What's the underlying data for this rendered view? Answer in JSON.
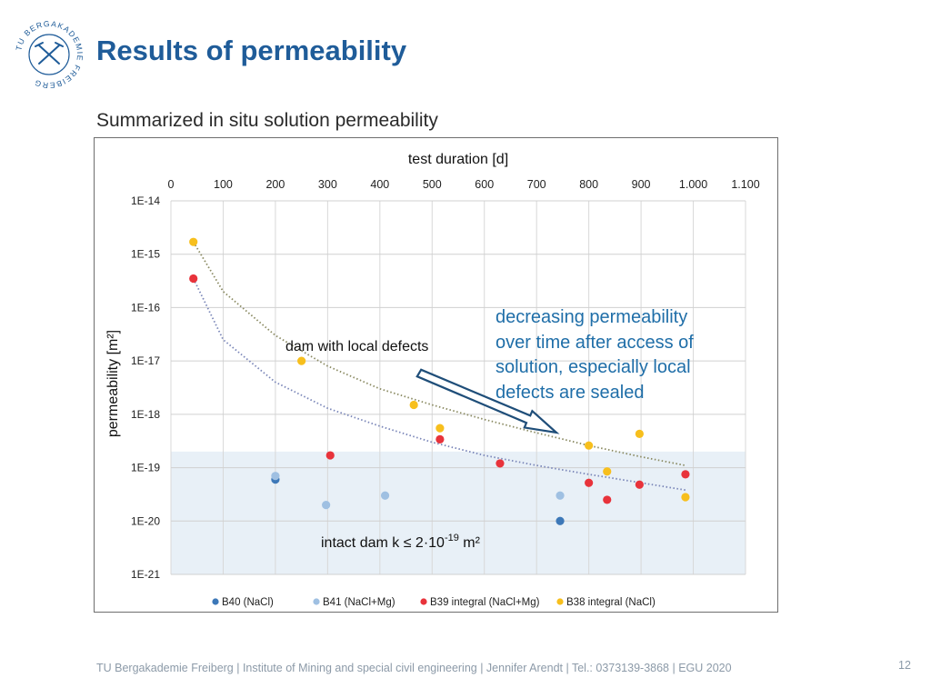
{
  "slide": {
    "title": "Results of permeability",
    "subtitle": "Summarized in situ solution permeability",
    "annotation": "decreasing permeability over time after access of solution, especially local defects are sealed",
    "footer": "TU Bergakademie Freiberg | Institute of Mining and special civil engineering  | Jennifer Arendt | Tel.: 0373139-3868 | EGU 2020",
    "page_number": "12",
    "logo_text": "TU BERGAKADEMIE FREIBERG"
  },
  "chart_data": {
    "type": "scatter",
    "title": "",
    "xlabel": "test duration [d]",
    "ylabel": "permeability [m²]",
    "x_axis_position": "top",
    "xlim": [
      0,
      1100
    ],
    "x_ticks": [
      0,
      100,
      200,
      300,
      400,
      500,
      600,
      700,
      800,
      900,
      1000,
      1100
    ],
    "x_tick_labels": [
      "0",
      "100",
      "200",
      "300",
      "400",
      "500",
      "600",
      "700",
      "800",
      "900",
      "1.000",
      "1.100"
    ],
    "y_scale": "log",
    "ylim": [
      1e-21,
      1e-14
    ],
    "y_ticks": [
      1e-14,
      1e-15,
      1e-16,
      1e-17,
      1e-18,
      1e-19,
      1e-20,
      1e-21
    ],
    "y_tick_labels": [
      "1E-14",
      "1E-15",
      "1E-16",
      "1E-17",
      "1E-18",
      "1E-19",
      "1E-20",
      "1E-21"
    ],
    "grid": true,
    "legend_position": "bottom",
    "region": {
      "y_max": 2e-19,
      "color": "#e8f0f7",
      "label_text": "intact dam k ≤ 2·10",
      "label_sup": "-19",
      "label_unit": " m²"
    },
    "region_label": "dam with local defects",
    "series": [
      {
        "name": "B40 (NaCl)",
        "color": "#3d78b8",
        "points": [
          [
            200,
            6e-20
          ],
          [
            745,
            1e-20
          ]
        ]
      },
      {
        "name": "B41 (NaCl+Mg)",
        "color": "#9fc0e2",
        "points": [
          [
            200,
            7e-20
          ],
          [
            297,
            2e-20
          ],
          [
            410,
            3e-20
          ],
          [
            745,
            3e-20
          ]
        ]
      },
      {
        "name": "B39 integral (NaCl+Mg)",
        "color": "#e8333b",
        "points": [
          [
            43,
            3.5e-16
          ],
          [
            305,
            1.7e-19
          ],
          [
            515,
            3.4e-19
          ],
          [
            630,
            1.2e-19
          ],
          [
            800,
            5.2e-20
          ],
          [
            835,
            2.5e-20
          ],
          [
            897,
            4.8e-20
          ],
          [
            985,
            7.5e-20
          ]
        ]
      },
      {
        "name": "B38 integral (NaCl)",
        "color": "#f7bf1d",
        "points": [
          [
            43,
            1.7e-15
          ],
          [
            250,
            1e-17
          ],
          [
            465,
            1.5e-18
          ],
          [
            515,
            5.5e-19
          ],
          [
            800,
            2.6e-19
          ],
          [
            835,
            8.5e-20
          ],
          [
            897,
            4.3e-19
          ],
          [
            985,
            2.8e-20
          ]
        ]
      }
    ],
    "trendlines": [
      {
        "color": "#8a8a62",
        "points": [
          [
            43,
            1.7e-15
          ],
          [
            100,
            2e-16
          ],
          [
            200,
            3e-17
          ],
          [
            300,
            8e-18
          ],
          [
            400,
            3e-18
          ],
          [
            500,
            1.5e-18
          ],
          [
            600,
            8e-19
          ],
          [
            700,
            4.5e-19
          ],
          [
            800,
            2.6e-19
          ],
          [
            900,
            1.6e-19
          ],
          [
            985,
            1.1e-19
          ]
        ]
      },
      {
        "color": "#7a86b8",
        "points": [
          [
            43,
            3.5e-16
          ],
          [
            100,
            2.5e-17
          ],
          [
            200,
            4e-18
          ],
          [
            300,
            1.3e-18
          ],
          [
            400,
            6e-19
          ],
          [
            500,
            3e-19
          ],
          [
            600,
            1.7e-19
          ],
          [
            700,
            1.1e-19
          ],
          [
            800,
            7.5e-20
          ],
          [
            900,
            5.2e-20
          ],
          [
            985,
            3.8e-20
          ]
        ]
      }
    ]
  }
}
